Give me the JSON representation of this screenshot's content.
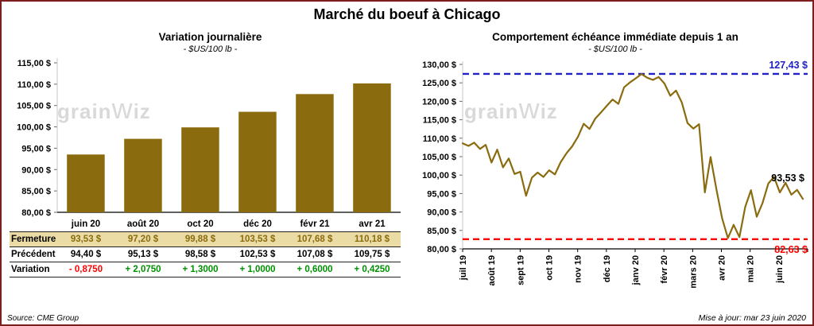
{
  "title": "Marché du boeuf à Chicago",
  "left_panel": {
    "title": "Variation  journalière",
    "subtitle": "- $US/100 lb -",
    "watermark_parts": [
      "grain",
      "w",
      "iz"
    ]
  },
  "right_panel": {
    "title": "Comportement  échéance immédiate depuis 1 an",
    "subtitle": "- $US/100 lb -",
    "watermark_parts": [
      "grain",
      "w",
      "iz"
    ]
  },
  "footer": {
    "source": "Source: CME Group",
    "updated": "Mise à jour: mar 23 juin 2020"
  },
  "table": {
    "columns": [
      "juin 20",
      "août 20",
      "oct 20",
      "déc 20",
      "févr 21",
      "avr 21"
    ],
    "rows": [
      {
        "label": "Fermeture",
        "class": "close",
        "values": [
          "93,53  $",
          "97,20  $",
          "99,88  $",
          "103,53  $",
          "107,68  $",
          "110,18  $"
        ]
      },
      {
        "label": "Précédent",
        "class": "prev",
        "values": [
          "94,40  $",
          "95,13  $",
          "98,58  $",
          "102,53  $",
          "107,08  $",
          "109,75  $"
        ]
      },
      {
        "label": "Variation",
        "class": "vari",
        "values": [
          "- 0,8750",
          "+ 2,0750",
          "+ 1,3000",
          "+ 1,0000",
          "+ 0,6000",
          "+ 0,4250"
        ],
        "value_classes": [
          "neg",
          "pos",
          "pos",
          "pos",
          "pos",
          "pos"
        ]
      }
    ]
  },
  "chart_data": [
    {
      "type": "bar",
      "title": "Variation journalière",
      "xlabel": "",
      "ylabel": "$US/100 lb",
      "categories": [
        "juin 20",
        "août 20",
        "oct 20",
        "déc 20",
        "févr 21",
        "avr 21"
      ],
      "values": [
        93.53,
        97.2,
        99.88,
        103.53,
        107.68,
        110.18
      ],
      "ylim": [
        80,
        115
      ],
      "ytick_step": 5,
      "ytick_labels": [
        "80,00 $",
        "85,00 $",
        "90,00 $",
        "95,00 $",
        "100,00 $",
        "105,00 $",
        "110,00 $",
        "115,00 $"
      ],
      "grid": false,
      "bar_color": "#8a6b0e"
    },
    {
      "type": "line",
      "title": "Comportement échéance immédiate depuis 1 an",
      "xlabel": "",
      "ylabel": "$US/100 lb",
      "x_labels": [
        "juil 19",
        "août 19",
        "sept 19",
        "oct 19",
        "nov 19",
        "déc 19",
        "janv 20",
        "févr 20",
        "mars 20",
        "avr 20",
        "mai 20",
        "juin 20"
      ],
      "values": [
        108.6,
        107.9,
        108.8,
        107.1,
        108.2,
        103.4,
        106.9,
        102.1,
        104.5,
        100.3,
        100.9,
        94.4,
        99.3,
        100.7,
        99.5,
        101.3,
        100.2,
        103.5,
        105.9,
        107.8,
        110.4,
        113.9,
        112.5,
        115.3,
        117.0,
        118.8,
        120.5,
        119.3,
        123.8,
        125.1,
        126.2,
        127.4,
        126.4,
        125.8,
        126.6,
        124.8,
        121.5,
        122.9,
        119.7,
        114.1,
        112.6,
        113.8,
        95.3,
        104.9,
        96.2,
        88.3,
        82.9,
        86.5,
        83.2,
        91.4,
        95.9,
        88.7,
        92.4,
        97.7,
        99.5,
        95.3,
        97.9,
        94.7,
        96.0,
        93.53
      ],
      "ylim": [
        80,
        130
      ],
      "ytick_step": 5,
      "ytick_labels": [
        "80,00 $",
        "85,00 $",
        "90,00 $",
        "95,00 $",
        "100,00 $",
        "105,00 $",
        "110,00 $",
        "115,00 $",
        "120,00 $",
        "125,00 $",
        "130,00 $"
      ],
      "grid": false,
      "line_color": "#8a6b0e",
      "high_line": {
        "value": 127.43,
        "label": "127,43 $",
        "color": "#2121c8"
      },
      "low_line": {
        "value": 82.63,
        "label": "82,63 $",
        "color": "#ff0000"
      },
      "last_label": {
        "value": 93.53,
        "label": "93,53 $",
        "color": "#000000"
      }
    }
  ]
}
